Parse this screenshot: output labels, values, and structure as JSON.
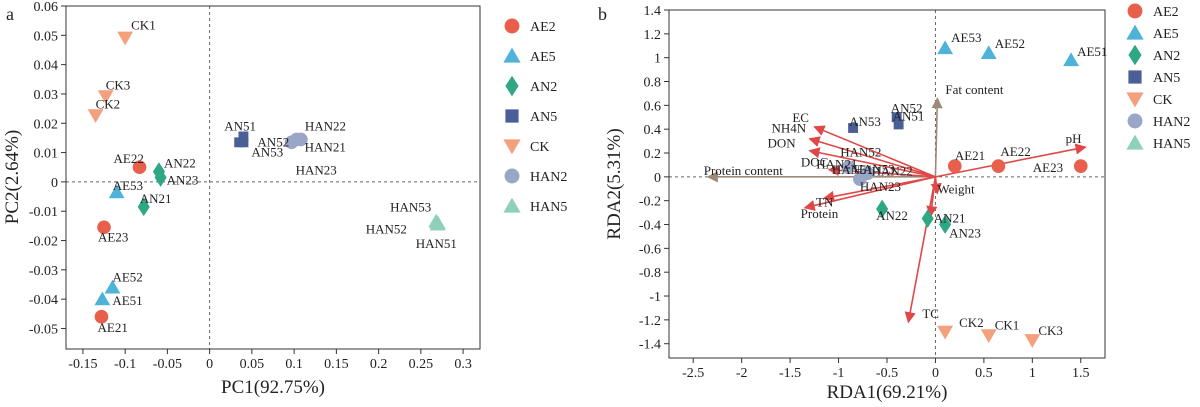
{
  "colors": {
    "AE2": "#e8604c",
    "AE5": "#4fb3d9",
    "AN2": "#2ea884",
    "AN5": "#4a5f95",
    "CK": "#f4a07c",
    "HAN2": "#9aa6c8",
    "HAN5": "#8fd0bb",
    "arrow_red": "#e04848",
    "arrow_brown": "#9e8a78"
  },
  "chart_data": [
    {
      "type": "scatter",
      "panel_label": "a",
      "xlabel": "PC1(92.75%)",
      "ylabel": "PC2(2.64%)",
      "xlim": [
        -0.17,
        0.32
      ],
      "ylim": [
        -0.057,
        0.06
      ],
      "xticks": [
        -0.15,
        -0.1,
        -0.05,
        0,
        0.05,
        0.1,
        0.15,
        0.2,
        0.25,
        0.3
      ],
      "xtick_labels": [
        "-0.15",
        "-0.1",
        "-0.05",
        "0",
        "0.05",
        "0.1",
        "0.15",
        "0.2",
        "0.25",
        "0.3"
      ],
      "yticks": [
        -0.05,
        -0.04,
        -0.03,
        -0.02,
        -0.01,
        0,
        0.01,
        0.02,
        0.03,
        0.04,
        0.05,
        0.06
      ],
      "ytick_labels": [
        "-0.05",
        "-0.04",
        "-0.03",
        "-0.02",
        "-0.01",
        "0",
        "0.01",
        "0.02",
        "0.03",
        "0.04",
        "0.05",
        "0.06"
      ],
      "zero_lines": true,
      "legend": [
        {
          "name": "AE2",
          "marker": "circle"
        },
        {
          "name": "AE5",
          "marker": "triangle"
        },
        {
          "name": "AN2",
          "marker": "diamond"
        },
        {
          "name": "AN5",
          "marker": "square"
        },
        {
          "name": "CK",
          "marker": "triangle-down"
        },
        {
          "name": "HAN2",
          "marker": "circle"
        },
        {
          "name": "HAN5",
          "marker": "triangle"
        }
      ],
      "points": [
        {
          "group": "CK",
          "x": -0.1,
          "y": 0.0492
        },
        {
          "group": "CK",
          "x": -0.123,
          "y": 0.0292
        },
        {
          "group": "CK",
          "x": -0.135,
          "y": 0.0227
        },
        {
          "group": "AE2",
          "x": -0.083,
          "y": 0.005
        },
        {
          "group": "AE2",
          "x": -0.125,
          "y": -0.0155
        },
        {
          "group": "AE2",
          "x": -0.128,
          "y": -0.046
        },
        {
          "group": "AN2",
          "x": -0.06,
          "y": 0.0035
        },
        {
          "group": "AN2",
          "x": -0.058,
          "y": 0.0015
        },
        {
          "group": "AN2",
          "x": -0.078,
          "y": -0.0085
        },
        {
          "group": "AE5",
          "x": -0.11,
          "y": -0.0035
        },
        {
          "group": "AE5",
          "x": -0.115,
          "y": -0.036
        },
        {
          "group": "AE5",
          "x": -0.127,
          "y": -0.04
        },
        {
          "group": "AN5",
          "x": 0.035,
          "y": 0.0135
        },
        {
          "group": "AN5",
          "x": 0.04,
          "y": 0.0135
        },
        {
          "group": "AN5",
          "x": 0.04,
          "y": 0.0155
        },
        {
          "group": "HAN2",
          "x": 0.097,
          "y": 0.0135
        },
        {
          "group": "HAN2",
          "x": 0.103,
          "y": 0.0145
        },
        {
          "group": "HAN2",
          "x": 0.108,
          "y": 0.0145
        },
        {
          "group": "HAN5",
          "x": 0.268,
          "y": -0.0135
        },
        {
          "group": "HAN5",
          "x": 0.27,
          "y": -0.0145
        },
        {
          "group": "HAN5",
          "x": 0.27,
          "y": -0.014
        }
      ],
      "annotations": [
        {
          "text": "CK1",
          "x": -0.1,
          "y": 0.0492
        },
        {
          "text": "CK3",
          "x": -0.123,
          "y": 0.0292
        },
        {
          "text": "CK2",
          "x": -0.135,
          "y": 0.0227
        },
        {
          "text": "AE22",
          "x": -0.083,
          "y": 0.005
        },
        {
          "text": "AN22",
          "x": -0.06,
          "y": 0.0035
        },
        {
          "text": "AN23",
          "x": -0.058,
          "y": 0.0015
        },
        {
          "text": "AE53",
          "x": -0.11,
          "y": -0.0035
        },
        {
          "text": "AN21",
          "x": -0.078,
          "y": -0.0085
        },
        {
          "text": "AE23",
          "x": -0.125,
          "y": -0.0155
        },
        {
          "text": "AE52",
          "x": -0.115,
          "y": -0.036
        },
        {
          "text": "AE51",
          "x": -0.127,
          "y": -0.04
        },
        {
          "text": "AE21",
          "x": -0.128,
          "y": -0.046
        },
        {
          "text": "AN51",
          "x": 0.035,
          "y": 0.0135
        },
        {
          "text": "AN52",
          "x": 0.04,
          "y": 0.0135
        },
        {
          "text": "AN53",
          "x": 0.04,
          "y": 0.0155
        },
        {
          "text": "HAN22",
          "x": 0.108,
          "y": 0.0145
        },
        {
          "text": "HAN21",
          "x": 0.103,
          "y": 0.0145
        },
        {
          "text": "HAN23",
          "x": 0.097,
          "y": 0.0135
        },
        {
          "text": "HAN53",
          "x": 0.268,
          "y": -0.0135
        },
        {
          "text": "HAN52",
          "x": 0.27,
          "y": -0.0145
        },
        {
          "text": "HAN51",
          "x": 0.27,
          "y": -0.014
        }
      ]
    },
    {
      "type": "scatter",
      "panel_label": "b",
      "xlabel": "RDA1(69.21%)",
      "ylabel": "RDA2(5.31%)",
      "xlim": [
        -2.75,
        1.75
      ],
      "ylim": [
        -1.52,
        1.4
      ],
      "xticks": [
        -2.5,
        -2,
        -1.5,
        -1,
        -0.5,
        0,
        0.5,
        1,
        1.5
      ],
      "xtick_labels": [
        "-2.5",
        "-2",
        "-1.5",
        "-1",
        "-0.5",
        "0",
        "0.5",
        "1",
        "1.5"
      ],
      "yticks": [
        -1.4,
        -1.2,
        -1,
        -0.8,
        -0.6,
        -0.4,
        -0.2,
        0,
        0.2,
        0.4,
        0.6,
        0.8,
        1,
        1.2,
        1.4
      ],
      "ytick_labels": [
        "-1.4",
        "-1.2",
        "-1",
        "-0.8",
        "-0.6",
        "-0.4",
        "-0.2",
        "0",
        "0.2",
        "0.4",
        "0.6",
        "0.8",
        "1",
        "1.2",
        "1.4"
      ],
      "zero_lines": true,
      "legend": [
        {
          "name": "AE2",
          "marker": "circle"
        },
        {
          "name": "AE5",
          "marker": "triangle"
        },
        {
          "name": "AN2",
          "marker": "diamond"
        },
        {
          "name": "AN5",
          "marker": "square"
        },
        {
          "name": "CK",
          "marker": "triangle-down"
        },
        {
          "name": "HAN2",
          "marker": "circle"
        },
        {
          "name": "HAN5",
          "marker": "triangle"
        }
      ],
      "points": [
        {
          "group": "AE5",
          "x": 0.1,
          "y": 1.08
        },
        {
          "group": "AE5",
          "x": 0.55,
          "y": 1.04
        },
        {
          "group": "AE5",
          "x": 1.4,
          "y": 0.98
        },
        {
          "group": "AN5",
          "x": -0.85,
          "y": 0.41
        },
        {
          "group": "AN5",
          "x": -0.4,
          "y": 0.5
        },
        {
          "group": "AN5",
          "x": -0.38,
          "y": 0.44
        },
        {
          "group": "AE2",
          "x": 0.2,
          "y": 0.09
        },
        {
          "group": "AE2",
          "x": 0.65,
          "y": 0.09
        },
        {
          "group": "AE2",
          "x": 1.5,
          "y": 0.09
        },
        {
          "group": "HAN2",
          "x": -0.9,
          "y": 0.08
        },
        {
          "group": "HAN2",
          "x": -0.78,
          "y": -0.02
        },
        {
          "group": "HAN2",
          "x": -0.7,
          "y": 0.03
        },
        {
          "group": "AN2",
          "x": -0.55,
          "y": -0.27
        },
        {
          "group": "AN2",
          "x": -0.08,
          "y": -0.35
        },
        {
          "group": "AN2",
          "x": 0.1,
          "y": -0.4
        },
        {
          "group": "CK",
          "x": 0.1,
          "y": -1.3
        },
        {
          "group": "CK",
          "x": 0.55,
          "y": -1.33
        },
        {
          "group": "CK",
          "x": 1.0,
          "y": -1.37
        }
      ],
      "annotations": [
        {
          "text": "AE53",
          "x": 0.1,
          "y": 1.08
        },
        {
          "text": "AE52",
          "x": 0.55,
          "y": 1.04
        },
        {
          "text": "AE51",
          "x": 1.4,
          "y": 0.98
        },
        {
          "text": "AN52",
          "x": -0.4,
          "y": 0.5
        },
        {
          "text": "AN51",
          "x": -0.38,
          "y": 0.44
        },
        {
          "text": "AN53",
          "x": -0.85,
          "y": 0.41
        },
        {
          "text": "Fat content",
          "x": 0.02,
          "y": 0.66
        },
        {
          "text": "EC",
          "x": -1.25,
          "y": 0.42
        },
        {
          "text": "NH4N",
          "x": -1.3,
          "y": 0.32
        },
        {
          "text": "HAN52",
          "x": -0.9,
          "y": 0.08
        },
        {
          "text": "DON",
          "x": -1.3,
          "y": 0.22
        },
        {
          "text": "HAN51",
          "x": -0.78,
          "y": -0.02
        },
        {
          "text": "HAN53",
          "x": -0.7,
          "y": 0.03
        },
        {
          "text": "pH",
          "x": 1.55,
          "y": 0.25
        },
        {
          "text": "AE21",
          "x": 0.2,
          "y": 0.09
        },
        {
          "text": "AE22",
          "x": 0.65,
          "y": 0.09
        },
        {
          "text": "Protein content",
          "x": -2.35,
          "y": 0.0
        },
        {
          "text": "DOC",
          "x": -1.1,
          "y": 0.06
        },
        {
          "text": "HAN21",
          "x": -0.9,
          "y": 0.08
        },
        {
          "text": "HAN22",
          "x": -0.7,
          "y": 0.03
        },
        {
          "text": "AE23",
          "x": 1.5,
          "y": 0.09
        },
        {
          "text": "HAN23",
          "x": -0.78,
          "y": -0.02
        },
        {
          "text": "Weight",
          "x": 0.02,
          "y": -0.14
        },
        {
          "text": "AN22",
          "x": -0.55,
          "y": -0.27
        },
        {
          "text": "TN",
          "x": -1.15,
          "y": -0.18
        },
        {
          "text": "AN21",
          "x": -0.08,
          "y": -0.35
        },
        {
          "text": "Protein",
          "x": -1.35,
          "y": -0.26
        },
        {
          "text": "AN23",
          "x": 0.1,
          "y": -0.4
        },
        {
          "text": "TC",
          "x": -0.28,
          "y": -1.22
        },
        {
          "text": "CK2",
          "x": 0.1,
          "y": -1.3
        },
        {
          "text": "CK1",
          "x": 0.55,
          "y": -1.33
        },
        {
          "text": "CK3",
          "x": 1.0,
          "y": -1.37
        }
      ],
      "arrows": [
        {
          "label": "Fat content",
          "x": 0.02,
          "y": 0.66,
          "color": "brown"
        },
        {
          "label": "Protein content",
          "x": -2.35,
          "y": 0.0,
          "color": "brown"
        },
        {
          "label": "pH",
          "x": 1.55,
          "y": 0.25,
          "color": "red"
        },
        {
          "label": "EC",
          "x": -1.25,
          "y": 0.42,
          "color": "red"
        },
        {
          "label": "NH4N",
          "x": -1.3,
          "y": 0.32,
          "color": "red"
        },
        {
          "label": "DON",
          "x": -1.3,
          "y": 0.22,
          "color": "red"
        },
        {
          "label": "DOC",
          "x": -1.1,
          "y": 0.06,
          "color": "red"
        },
        {
          "label": "TN",
          "x": -1.15,
          "y": -0.18,
          "color": "red"
        },
        {
          "label": "Protein",
          "x": -1.35,
          "y": -0.26,
          "color": "red"
        },
        {
          "label": "Weight",
          "x": 0.02,
          "y": -0.14,
          "color": "red"
        },
        {
          "label": "TC",
          "x": -0.28,
          "y": -1.22,
          "color": "red"
        },
        {
          "label": "AN21",
          "x": -0.05,
          "y": -0.33,
          "color": "red"
        }
      ]
    }
  ]
}
